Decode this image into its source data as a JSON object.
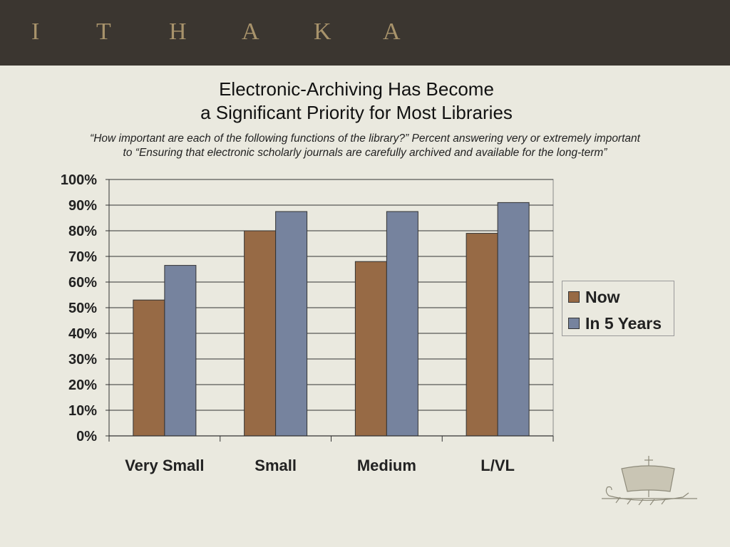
{
  "header": {
    "logo_letters": [
      "I",
      "T",
      "H",
      "A",
      "K",
      "A"
    ]
  },
  "title_line1": "Electronic-Archiving Has Become",
  "title_line2": "a Significant Priority for Most Libraries",
  "subtitle_line1": "“How important are each of the following functions of the library?” Percent answering very or extremely important",
  "subtitle_line2": "to “Ensuring that electronic scholarly journals are carefully archived and available for the long-term”",
  "colors": {
    "header_bg": "#3b3630",
    "logo": "#a8936b",
    "background": "#eae9df",
    "now": "#976a45",
    "in5": "#76839e"
  },
  "legend": {
    "now_label": "Now",
    "in5_label": "In 5 Years"
  },
  "chart_data": {
    "type": "bar",
    "title": "",
    "xlabel": "",
    "ylabel": "",
    "categories": [
      "Very Small",
      "Small",
      "Medium",
      "L/VL"
    ],
    "series": [
      {
        "name": "Now",
        "values": [
          53,
          80,
          68,
          79
        ]
      },
      {
        "name": "In 5 Years",
        "values": [
          66.5,
          87.5,
          87.5,
          91
        ]
      }
    ],
    "ylim": [
      0,
      100
    ],
    "yticks": [
      "0%",
      "10%",
      "20%",
      "30%",
      "40%",
      "50%",
      "60%",
      "70%",
      "80%",
      "90%",
      "100%"
    ],
    "grid": true,
    "legend_position": "right"
  }
}
